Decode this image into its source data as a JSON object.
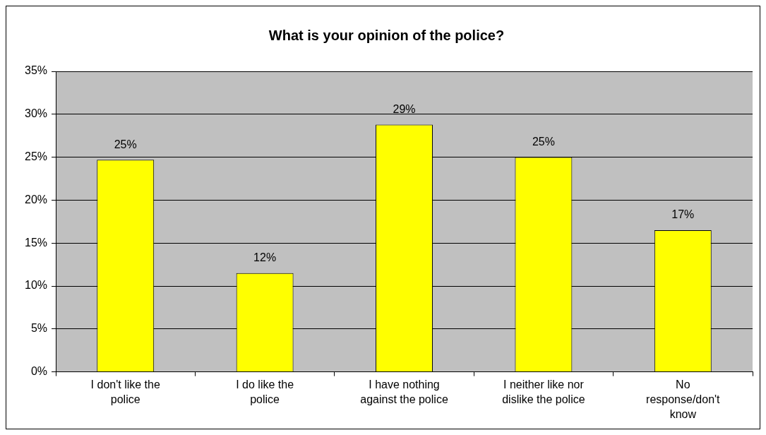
{
  "chart_data": {
    "type": "bar",
    "title": "What is your opinion of the police?",
    "categories": [
      "I don't like the police",
      "I do like the police",
      "I have nothing against the police",
      "I neither like nor dislike the police",
      "No response/don't know"
    ],
    "values": [
      24.7,
      11.5,
      28.8,
      25.0,
      16.5
    ],
    "value_labels": [
      "25%",
      "12%",
      "29%",
      "25%",
      "17%"
    ],
    "color": "#ffff00",
    "ylim": [
      0,
      35
    ],
    "yticks": [
      {
        "value": 0,
        "label": "0%"
      },
      {
        "value": 5,
        "label": "5%"
      },
      {
        "value": 10,
        "label": "10%"
      },
      {
        "value": 15,
        "label": "15%"
      },
      {
        "value": 20,
        "label": "20%"
      },
      {
        "value": 25,
        "label": "25%"
      },
      {
        "value": 30,
        "label": "30%"
      },
      {
        "value": 35,
        "label": "35%"
      }
    ],
    "grid": "y",
    "legend": false
  }
}
